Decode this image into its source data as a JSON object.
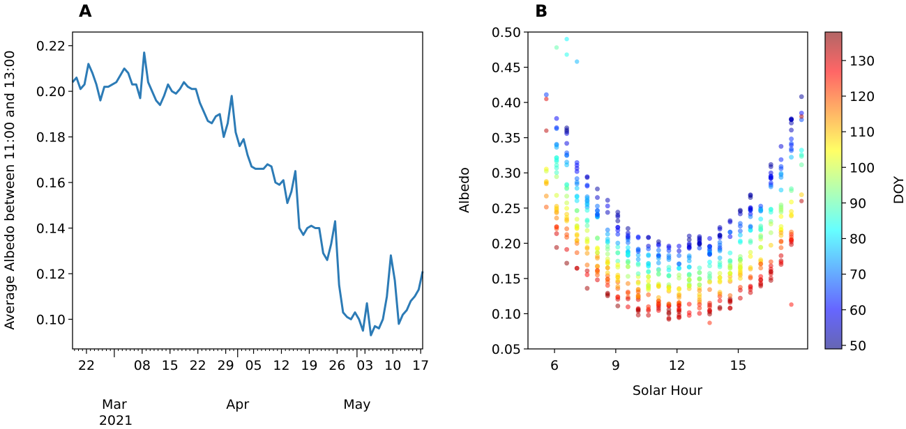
{
  "panels": {
    "a_letter": "A",
    "b_letter": "B"
  },
  "chart_data": [
    {
      "type": "line",
      "panel": "A",
      "ylabel": "Average Albedo between 11:00 and 13:00",
      "xlabel": "",
      "ylim": [
        0.087,
        0.226
      ],
      "xlim_day_of_year": [
        49.5,
        137.5
      ],
      "line_color": "#2c7bb6",
      "yticks": [
        "0.10",
        "0.12",
        "0.14",
        "0.16",
        "0.18",
        "0.20",
        "0.22"
      ],
      "xticks": [
        "22",
        "08",
        "15",
        "22",
        "29",
        "05",
        "12",
        "19",
        "26",
        "03",
        "10",
        "17"
      ],
      "xtick_days": [
        53,
        67,
        74,
        81,
        88,
        95,
        102,
        109,
        116,
        123,
        130,
        137
      ],
      "month_labels": [
        "Mar",
        "Apr",
        "May"
      ],
      "month_label_days": [
        60,
        91,
        121
      ],
      "year_label": "2021",
      "x_day_of_year": [
        49.5,
        50.5,
        51.5,
        52.5,
        53.5,
        54.5,
        55.5,
        56.5,
        57.5,
        58.5,
        59.5,
        60.5,
        61.5,
        62.5,
        63.5,
        64.5,
        65.5,
        66.5,
        67.5,
        68.5,
        69.5,
        70.5,
        71.5,
        72.5,
        73.5,
        74.5,
        75.5,
        76.5,
        77.5,
        78.5,
        79.5,
        80.5,
        81.5,
        82.5,
        83.5,
        84.5,
        85.5,
        86.5,
        87.5,
        88.5,
        89.5,
        90.5,
        91.5,
        92.5,
        93.5,
        94.5,
        95.5,
        96.5,
        97.5,
        98.5,
        99.5,
        100.5,
        101.5,
        102.5,
        103.5,
        104.5,
        105.5,
        106.5,
        107.5,
        108.5,
        109.5,
        110.5,
        111.5,
        112.5,
        113.5,
        114.5,
        115.5,
        116.5,
        117.5,
        118.5,
        119.5,
        120.5,
        121.5,
        122.5,
        123.5,
        124.5,
        125.5,
        126.5,
        127.5,
        128.5,
        129.5,
        130.5,
        131.5,
        132.5,
        133.5,
        134.5,
        135.5,
        136.5,
        137.5
      ],
      "values": [
        0.204,
        0.206,
        0.201,
        0.203,
        0.212,
        0.208,
        0.203,
        0.196,
        0.202,
        0.202,
        0.203,
        0.204,
        0.207,
        0.21,
        0.208,
        0.203,
        0.203,
        0.197,
        0.217,
        0.204,
        0.2,
        0.196,
        0.194,
        0.198,
        0.203,
        0.2,
        0.199,
        0.201,
        0.204,
        0.202,
        0.201,
        0.201,
        0.195,
        0.191,
        0.187,
        0.186,
        0.189,
        0.19,
        0.18,
        0.186,
        0.198,
        0.182,
        0.176,
        0.179,
        0.172,
        0.167,
        0.166,
        0.166,
        0.166,
        0.168,
        0.167,
        0.16,
        0.159,
        0.161,
        0.151,
        0.156,
        0.165,
        0.14,
        0.137,
        0.14,
        0.141,
        0.14,
        0.14,
        0.129,
        0.126,
        0.133,
        0.143,
        0.115,
        0.103,
        0.101,
        0.1,
        0.103,
        0.1,
        0.095,
        0.107,
        0.093,
        0.097,
        0.096,
        0.1,
        0.11,
        0.128,
        0.117,
        0.098,
        0.102,
        0.104,
        0.108,
        0.11,
        0.113,
        0.121
      ]
    },
    {
      "type": "scatter",
      "panel": "B",
      "xlabel": "Solar Hour",
      "ylabel": "Albedo",
      "xlim": [
        4.7,
        18.4
      ],
      "ylim": [
        0.05,
        0.5
      ],
      "xticks": [
        "6",
        "9",
        "12",
        "15"
      ],
      "xtick_values": [
        6,
        9,
        12,
        15
      ],
      "yticks": [
        "0.05",
        "0.10",
        "0.15",
        "0.20",
        "0.25",
        "0.30",
        "0.35",
        "0.40",
        "0.45",
        "0.50"
      ],
      "colormap": "jet",
      "marker_alpha": 0.5,
      "colorbar": {
        "label": "DOY",
        "range": [
          49,
          138
        ],
        "ticks": [
          "50",
          "60",
          "70",
          "80",
          "90",
          "100",
          "110",
          "120",
          "130"
        ],
        "tick_values": [
          50,
          60,
          70,
          80,
          90,
          100,
          110,
          120,
          130
        ]
      },
      "solar_hours": [
        5.6,
        6.1,
        6.6,
        7.1,
        7.6,
        8.1,
        8.6,
        9.1,
        9.6,
        10.1,
        10.6,
        11.1,
        11.6,
        12.1,
        12.6,
        13.1,
        13.6,
        14.1,
        14.6,
        15.1,
        15.6,
        16.1,
        16.6,
        17.1,
        17.6,
        18.1
      ],
      "doy_range": [
        50,
        137
      ],
      "notable_points": [
        {
          "x": 6.6,
          "y": 0.49,
          "doy": 82
        },
        {
          "x": 6.1,
          "y": 0.478,
          "doy": 90
        },
        {
          "x": 6.6,
          "y": 0.468,
          "doy": 84
        },
        {
          "x": 7.1,
          "y": 0.458,
          "doy": 76
        },
        {
          "x": 5.6,
          "y": 0.405,
          "doy": 130
        },
        {
          "x": 5.6,
          "y": 0.36,
          "doy": 133
        },
        {
          "x": 18.1,
          "y": 0.38,
          "doy": 134
        },
        {
          "x": 13.6,
          "y": 0.087,
          "doy": 124
        },
        {
          "x": 17.6,
          "y": 0.113,
          "doy": 126
        },
        {
          "x": 18.1,
          "y": 0.26,
          "doy": 133
        }
      ]
    }
  ]
}
